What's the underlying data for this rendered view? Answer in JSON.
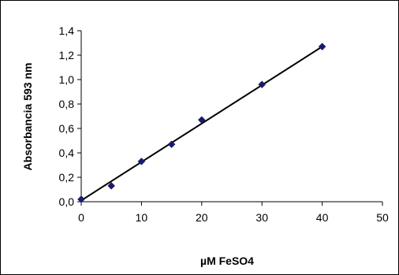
{
  "chart_data": {
    "type": "scatter",
    "title": "",
    "xlabel": "µM FeSO4",
    "ylabel": "Absorbancia 593 nm",
    "xlim": [
      0,
      50
    ],
    "ylim": [
      0,
      1.4
    ],
    "x_ticks": [
      "0",
      "10",
      "20",
      "30",
      "40",
      "50"
    ],
    "y_ticks": [
      "0,0",
      "0,2",
      "0,4",
      "0,6",
      "0,8",
      "1,0",
      "1,2",
      "1,4"
    ],
    "grid": false,
    "legend": "none",
    "series": [
      {
        "x": [
          0,
          5,
          10,
          15,
          20,
          30,
          40
        ],
        "y": [
          0.02,
          0.13,
          0.33,
          0.47,
          0.67,
          0.96,
          1.27
        ],
        "marker": "diamond",
        "color": "#1a1a6e"
      }
    ],
    "trendline": {
      "type": "linear",
      "from": [
        0,
        0.01
      ],
      "to": [
        40,
        1.27
      ],
      "color": "#000000"
    }
  }
}
